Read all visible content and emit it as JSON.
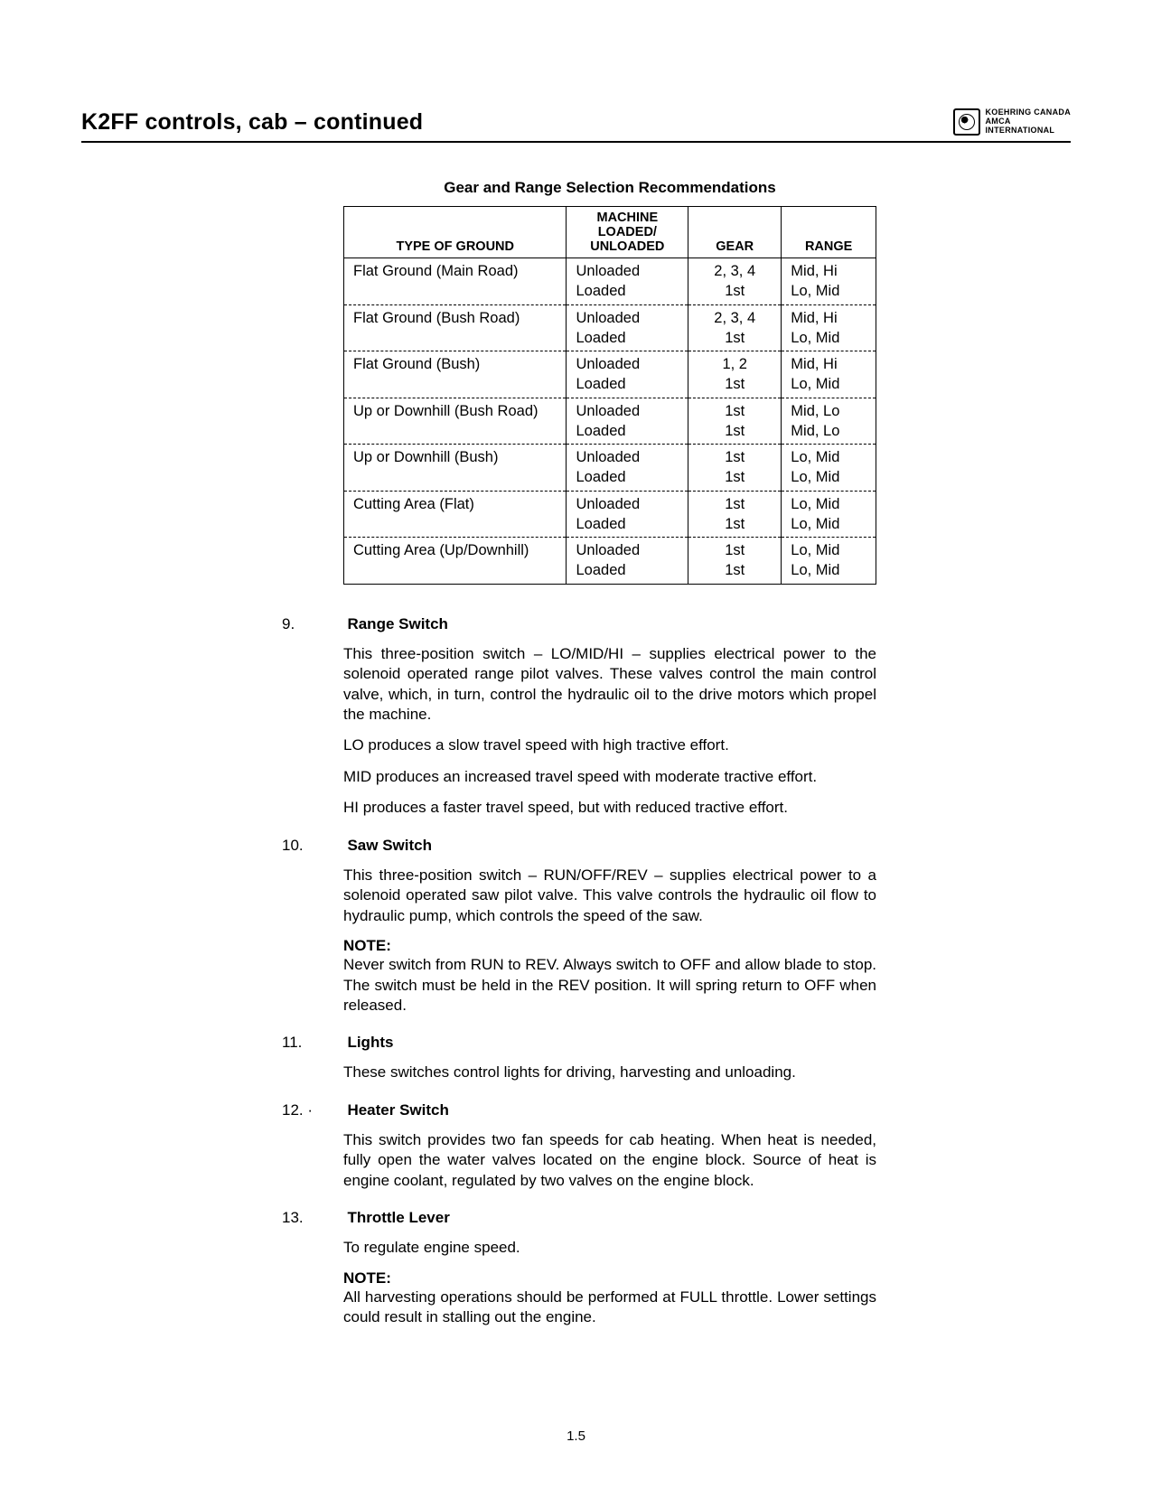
{
  "header": {
    "title": "K2FF controls, cab – continued",
    "logo_text_line1": "KOEHRING CANADA",
    "logo_text_line2": "AMCA",
    "logo_text_line3": "INTERNATIONAL"
  },
  "table": {
    "title": "Gear and Range Selection Recommendations",
    "headers": {
      "ground": "TYPE OF GROUND",
      "loaded": "MACHINE LOADED/ UNLOADED",
      "gear": "GEAR",
      "range": "RANGE"
    },
    "rows": [
      {
        "ground": "Flat Ground (Main Road)",
        "unloaded_gear": "2, 3, 4",
        "unloaded_range": "Mid, Hi",
        "loaded_gear": "1st",
        "loaded_range": "Lo, Mid"
      },
      {
        "ground": "Flat Ground (Bush Road)",
        "unloaded_gear": "2, 3, 4",
        "unloaded_range": "Mid, Hi",
        "loaded_gear": "1st",
        "loaded_range": "Lo, Mid"
      },
      {
        "ground": "Flat Ground (Bush)",
        "unloaded_gear": "1, 2",
        "unloaded_range": "Mid, Hi",
        "loaded_gear": "1st",
        "loaded_range": "Lo, Mid"
      },
      {
        "ground": "Up or Downhill (Bush Road)",
        "unloaded_gear": "1st",
        "unloaded_range": "Mid, Lo",
        "loaded_gear": "1st",
        "loaded_range": "Mid, Lo"
      },
      {
        "ground": "Up or Downhill (Bush)",
        "unloaded_gear": "1st",
        "unloaded_range": "Lo, Mid",
        "loaded_gear": "1st",
        "loaded_range": "Lo, Mid"
      },
      {
        "ground": "Cutting Area (Flat)",
        "unloaded_gear": "1st",
        "unloaded_range": "Lo, Mid",
        "loaded_gear": "1st",
        "loaded_range": "Lo, Mid"
      },
      {
        "ground": "Cutting Area (Up/Downhill)",
        "unloaded_gear": "1st",
        "unloaded_range": "Lo, Mid",
        "loaded_gear": "1st",
        "loaded_range": "Lo, Mid"
      }
    ],
    "unloaded_label": "Unloaded",
    "loaded_label": "Loaded"
  },
  "sections": {
    "s9": {
      "num": "9.",
      "title": "Range Switch",
      "p1": "This three-position switch – LO/MID/HI – supplies electrical power to the solenoid operated range pilot valves. These valves control the main control valve, which, in turn, control the hydraulic oil to the drive motors which propel the machine.",
      "p2": "LO produces a slow travel speed with high tractive effort.",
      "p3": "MID produces an increased travel speed with moderate tractive effort.",
      "p4": "HI produces a faster travel speed, but with reduced tractive effort."
    },
    "s10": {
      "num": "10.",
      "title": "Saw Switch",
      "p1": "This three-position switch – RUN/OFF/REV – supplies electrical power to a solenoid operated saw pilot valve. This valve controls the hydraulic oil flow to hydraulic pump, which controls the speed of the saw.",
      "note_title": "NOTE:",
      "note": "Never switch from RUN to REV. Always switch to OFF and allow blade to stop. The switch must be held in the REV position. It will spring return to OFF when released."
    },
    "s11": {
      "num": "11.",
      "title": "Lights",
      "p1": "These switches control lights for driving, harvesting and unloading."
    },
    "s12": {
      "num": "12.  ·",
      "title": "Heater Switch",
      "p1": "This switch provides two fan speeds for cab heating. When heat is needed, fully open the water valves located on the engine block. Source of heat is engine coolant, regulated by two valves on the engine block."
    },
    "s13": {
      "num": "13.",
      "title": "Throttle Lever",
      "p1": "To regulate engine speed.",
      "note_title": "NOTE:",
      "note": "All harvesting operations should be performed at FULL throttle. Lower settings could result in stalling out the engine."
    }
  },
  "page_number": "1.5"
}
